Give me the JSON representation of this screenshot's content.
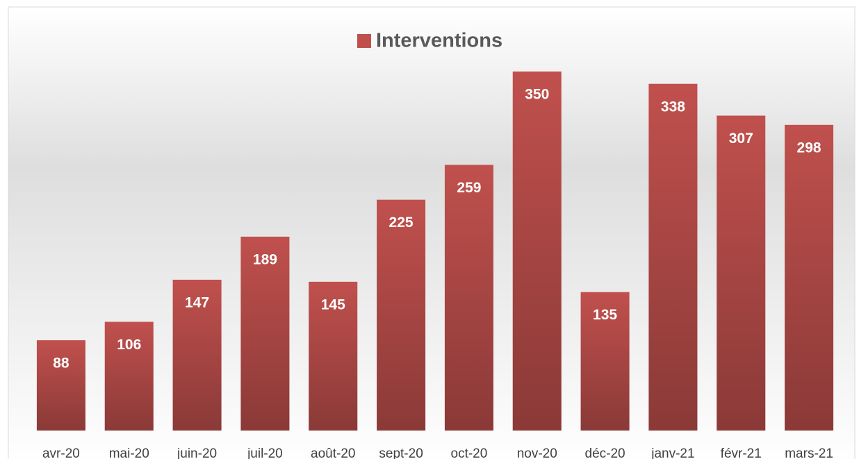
{
  "chart_data": {
    "type": "bar",
    "categories": [
      "avr-20",
      "mai-20",
      "juin-20",
      "juil-20",
      "août-20",
      "sept-20",
      "oct-20",
      "nov-20",
      "déc-20",
      "janv-21",
      "févr-21",
      "mars-21"
    ],
    "series": [
      {
        "name": "Interventions",
        "color": "#c0504d",
        "values": [
          88,
          106,
          147,
          189,
          145,
          225,
          259,
          350,
          135,
          338,
          307,
          298
        ]
      }
    ],
    "legend": "top"
  }
}
